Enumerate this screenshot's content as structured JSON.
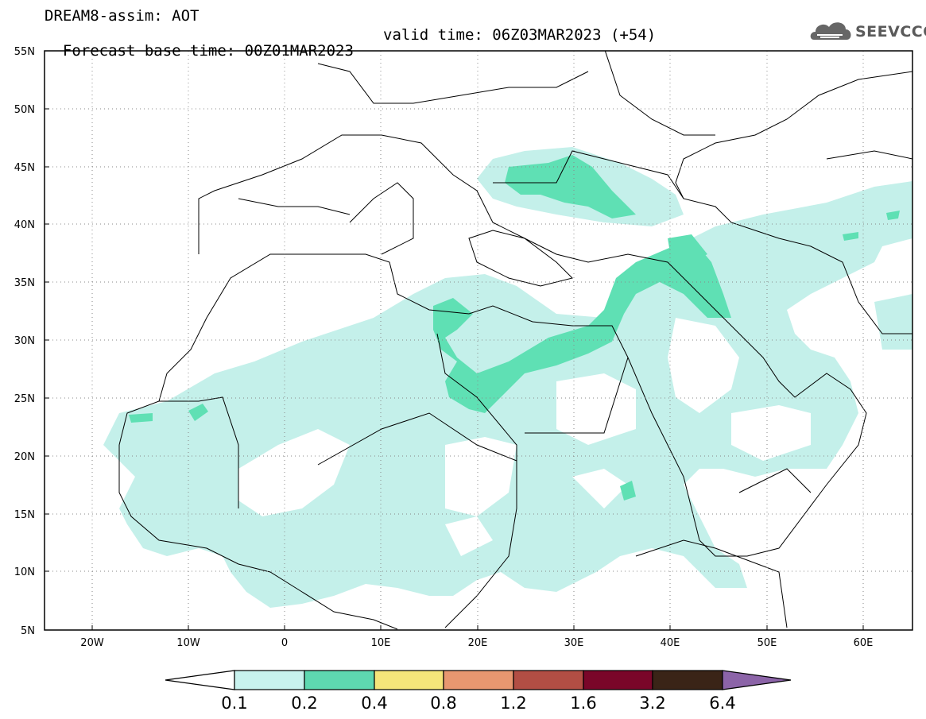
{
  "header": {
    "model": "DREAM8-assim: AOT",
    "base_time": "Forecast base time: 00Z01MAR2023",
    "valid_time": "valid time: 06Z03MAR2023 (+54)"
  },
  "logo": {
    "text": "SEEVCCC",
    "icon": "cloud-icon"
  },
  "map": {
    "lat_labels": [
      "55N",
      "50N",
      "45N",
      "40N",
      "35N",
      "30N",
      "25N",
      "20N",
      "15N",
      "10N",
      "5N"
    ],
    "lon_labels": [
      "20W",
      "10W",
      "0",
      "10E",
      "20E",
      "30E",
      "40E",
      "50E",
      "60E"
    ],
    "grid": "dotted",
    "colors": {
      "level_0_1": "#c4f0ea",
      "level_0_2": "#5fe0b4"
    }
  },
  "colorbar": {
    "labels": [
      "0.1",
      "0.2",
      "0.4",
      "0.8",
      "1.2",
      "1.6",
      "3.2",
      "6.4"
    ],
    "colors": [
      "#c8f2ee",
      "#5ed8b0",
      "#f5e57a",
      "#e89770",
      "#b24e44",
      "#7a0629",
      "#3a2417",
      "#8c64a8"
    ]
  }
}
